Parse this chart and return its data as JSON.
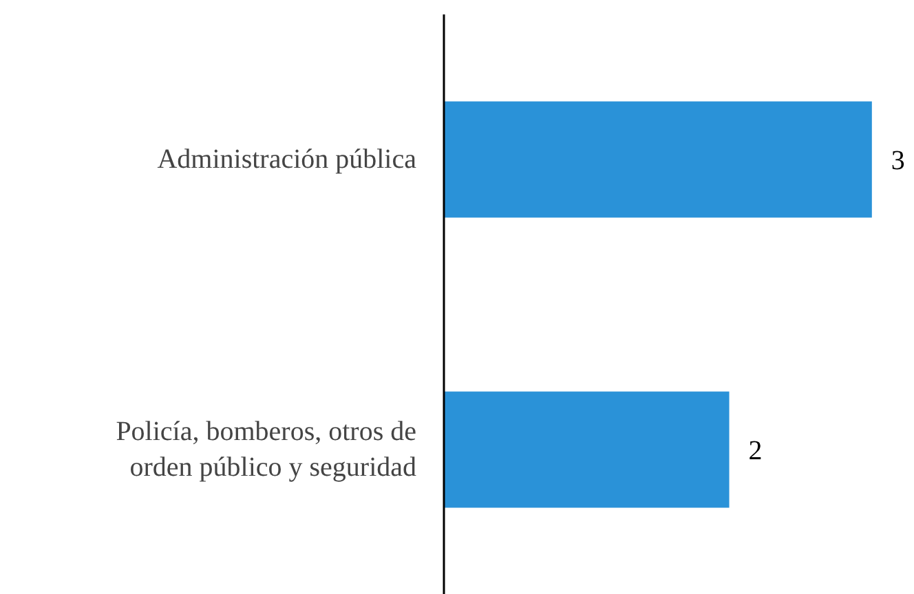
{
  "chart_data": {
    "type": "bar",
    "orientation": "horizontal",
    "categories": [
      "Administración pública",
      "Policía, bomberos, otros de\norden público y seguridad"
    ],
    "values": [
      3,
      2
    ],
    "color": "#2a92d8",
    "data_labels": true,
    "grid": false
  }
}
